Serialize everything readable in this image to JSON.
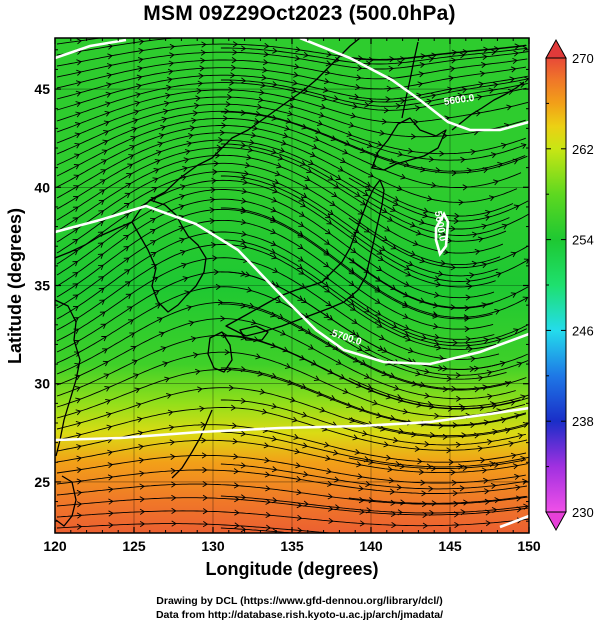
{
  "title": "MSM 09Z29Oct2023 (500.0hPa)",
  "chart_data": {
    "type": "heatmap",
    "title": "MSM 09Z29Oct2023 (500.0hPa)",
    "xlabel": "Longitude (degrees)",
    "ylabel": "Latitude  (degrees)",
    "xlim": [
      120,
      150
    ],
    "ylim": [
      22.4,
      47.6
    ],
    "x_ticks": [
      "120",
      "125",
      "130",
      "135",
      "140",
      "145",
      "150"
    ],
    "y_ticks": [
      "25",
      "30",
      "35",
      "40",
      "45"
    ],
    "colorbar": {
      "min": 230,
      "max": 270,
      "ticks": [
        "230",
        "238",
        "246",
        "254",
        "262",
        "270"
      ],
      "position": "right"
    },
    "field_description": "temperature shading (K) with streamlines and geopotential height contours",
    "temperature_zones": [
      {
        "lat": 46,
        "value": 255
      },
      {
        "lat": 40,
        "value": 255
      },
      {
        "lat": 35,
        "value": 254
      },
      {
        "lat": 31,
        "value": 256
      },
      {
        "lat": 29,
        "value": 260
      },
      {
        "lat": 27.5,
        "value": 263
      },
      {
        "lat": 26,
        "value": 266
      },
      {
        "lat": 24,
        "value": 268
      },
      {
        "lat": 22.5,
        "value": 269
      }
    ],
    "contour_labels": [
      {
        "text": "5600.0",
        "lon": 145.6,
        "lat": 44.3
      },
      {
        "text": "5700.0",
        "lon": 138.4,
        "lat": 32.2
      },
      {
        "text": "5600.0",
        "lon": 144.2,
        "lat": 38.0
      }
    ],
    "grid": true,
    "colors": {
      "contour": "#ffffff",
      "coast": "#000000",
      "streamline": "#000000"
    }
  },
  "credits": {
    "line1": "Drawing by DCL (https://www.gfd-dennou.org/library/dcl/)",
    "line2": "Data from http://database.rish.kyoto-u.ac.jp/arch/jmadata/"
  }
}
